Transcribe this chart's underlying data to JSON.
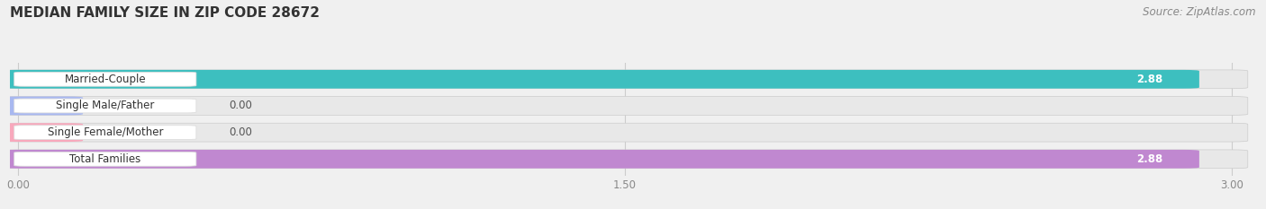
{
  "title": "MEDIAN FAMILY SIZE IN ZIP CODE 28672",
  "source": "Source: ZipAtlas.com",
  "categories": [
    "Married-Couple",
    "Single Male/Father",
    "Single Female/Mother",
    "Total Families"
  ],
  "values": [
    2.88,
    0.0,
    0.0,
    2.88
  ],
  "bar_colors": [
    "#3dbfbf",
    "#a8b8f0",
    "#f8a8bc",
    "#c088d0"
  ],
  "xlim": [
    0,
    3.0
  ],
  "xticks": [
    0.0,
    1.5,
    3.0
  ],
  "xtick_labels": [
    "0.00",
    "1.50",
    "3.00"
  ],
  "background_color": "#f0f0f0",
  "row_bg_color": "#e8e8e8",
  "bar_height": 0.62,
  "title_fontsize": 11,
  "label_fontsize": 8.5,
  "value_fontsize": 8.5,
  "source_fontsize": 8.5
}
